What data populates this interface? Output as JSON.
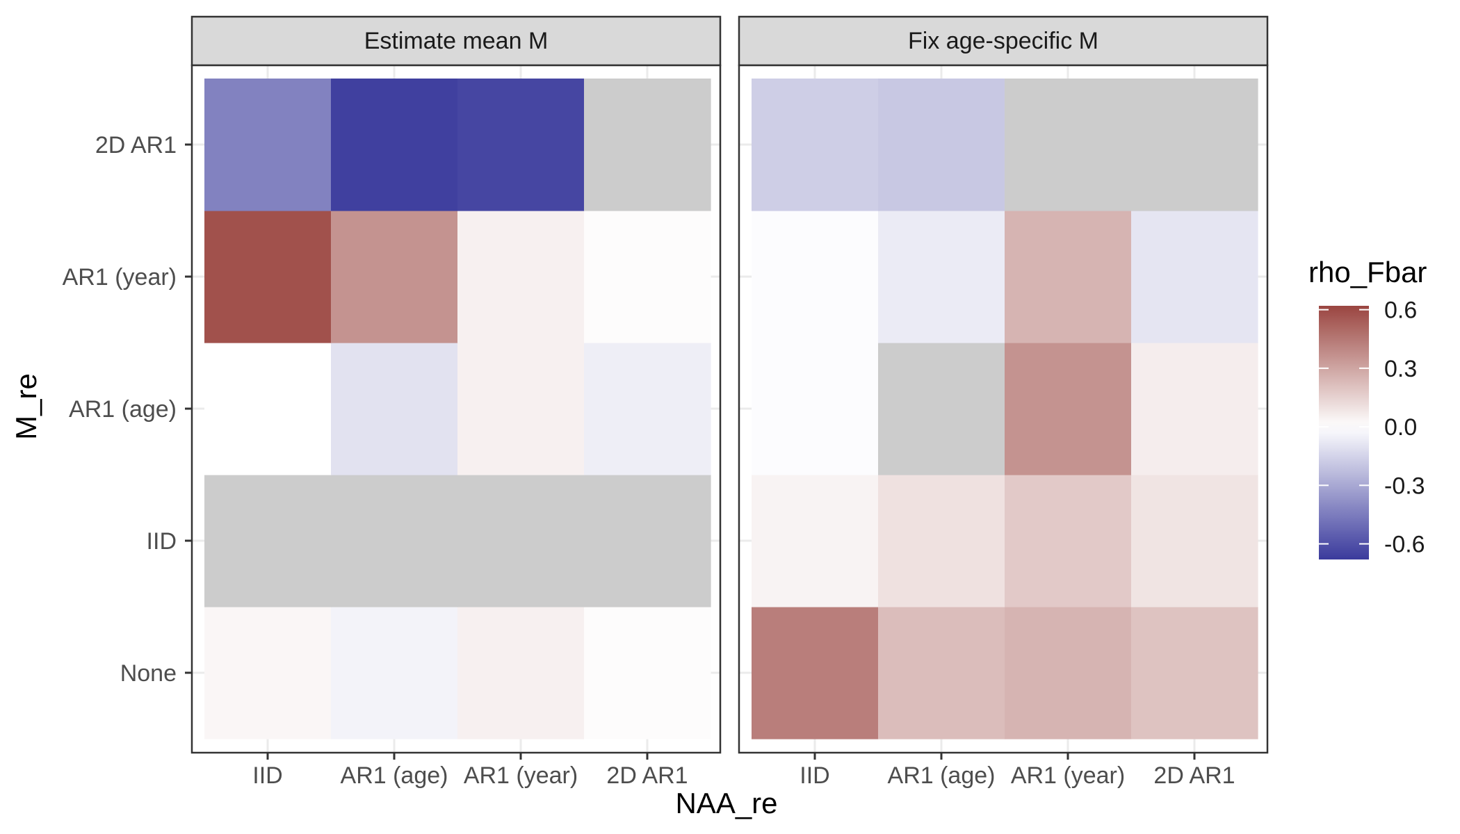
{
  "chart_data": {
    "type": "heatmap",
    "xlabel": "NAA_re",
    "ylabel": "M_re",
    "x_categories": [
      "IID",
      "AR1 (age)",
      "AR1 (year)",
      "2D AR1"
    ],
    "y_categories": [
      "None",
      "IID",
      "AR1 (age)",
      "AR1 (year)",
      "2D AR1"
    ],
    "legend": {
      "title": "rho_Fbar",
      "position": "right",
      "ticks": [
        0.6,
        0.3,
        0.0,
        -0.3,
        -0.6
      ],
      "tick_labels": [
        "0.6",
        "0.3",
        "0.0",
        "-0.3",
        "-0.6"
      ],
      "range": [
        -0.68,
        0.62
      ]
    },
    "colors": {
      "low": "#3a3a9c",
      "mid": "#ffffff",
      "high": "#9a4540",
      "na": "#cccccc",
      "strip_fill": "#d9d9d9",
      "panel_border": "#333333",
      "grid": "#ebebeb"
    },
    "grid": true,
    "facets": [
      {
        "label": "Estimate mean M",
        "rows": [
          [
            0.03,
            -0.04,
            0.05,
            0.01
          ],
          [
            null,
            null,
            null,
            null
          ],
          [
            0.0,
            -0.1,
            0.05,
            -0.06
          ],
          [
            0.58,
            0.36,
            0.05,
            0.01
          ],
          [
            -0.43,
            -0.66,
            -0.64,
            null
          ]
        ]
      },
      {
        "label": "Fix age-specific M",
        "rows": [
          [
            0.43,
            0.22,
            0.25,
            0.2
          ],
          [
            0.04,
            0.1,
            0.18,
            0.09
          ],
          [
            -0.01,
            null,
            0.36,
            0.06
          ],
          [
            -0.01,
            -0.07,
            0.25,
            -0.09
          ],
          [
            -0.17,
            -0.19,
            null,
            null
          ]
        ]
      }
    ]
  }
}
